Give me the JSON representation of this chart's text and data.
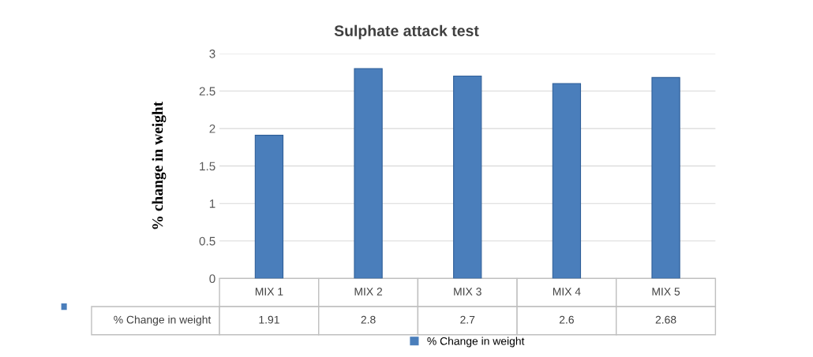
{
  "chart_data": {
    "type": "bar",
    "title": "Sulphate attack test",
    "ylabel": "% change in weight",
    "categories": [
      "MIX 1",
      "MIX 2",
      "MIX 3",
      "MIX 4",
      "MIX 5"
    ],
    "series": [
      {
        "name": "% Change in weight",
        "color": "#4a7ebb",
        "values": [
          1.91,
          2.8,
          2.7,
          2.6,
          2.68
        ]
      }
    ],
    "ylim": [
      0,
      3
    ],
    "yticks": [
      0,
      0.5,
      1,
      1.5,
      2,
      2.5,
      3
    ],
    "grid": "y",
    "data_labels": true,
    "legend": "bottom"
  }
}
